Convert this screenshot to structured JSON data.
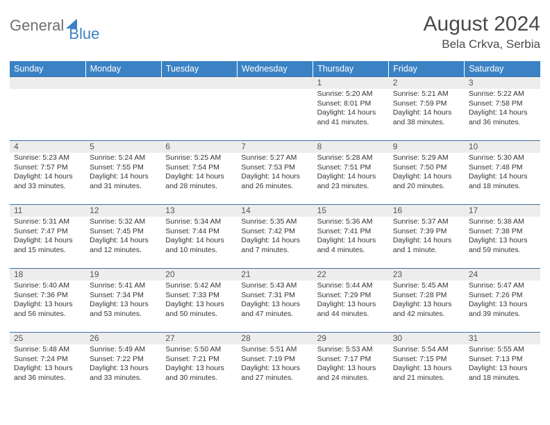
{
  "header": {
    "logo_part1": "General",
    "logo_part2": "Blue",
    "month_title": "August 2024",
    "location": "Bela Crkva, Serbia"
  },
  "style": {
    "accent_color": "#3b82c4",
    "header_text_color": "#ffffff",
    "daynum_bg": "#ededed",
    "body_font_size": 10.5,
    "title_font_size": 30
  },
  "weekdays": [
    "Sunday",
    "Monday",
    "Tuesday",
    "Wednesday",
    "Thursday",
    "Friday",
    "Saturday"
  ],
  "weeks": [
    [
      null,
      null,
      null,
      null,
      {
        "n": "1",
        "sr": "5:20 AM",
        "ss": "8:01 PM",
        "dl": "14 hours and 41 minutes."
      },
      {
        "n": "2",
        "sr": "5:21 AM",
        "ss": "7:59 PM",
        "dl": "14 hours and 38 minutes."
      },
      {
        "n": "3",
        "sr": "5:22 AM",
        "ss": "7:58 PM",
        "dl": "14 hours and 36 minutes."
      }
    ],
    [
      {
        "n": "4",
        "sr": "5:23 AM",
        "ss": "7:57 PM",
        "dl": "14 hours and 33 minutes."
      },
      {
        "n": "5",
        "sr": "5:24 AM",
        "ss": "7:55 PM",
        "dl": "14 hours and 31 minutes."
      },
      {
        "n": "6",
        "sr": "5:25 AM",
        "ss": "7:54 PM",
        "dl": "14 hours and 28 minutes."
      },
      {
        "n": "7",
        "sr": "5:27 AM",
        "ss": "7:53 PM",
        "dl": "14 hours and 26 minutes."
      },
      {
        "n": "8",
        "sr": "5:28 AM",
        "ss": "7:51 PM",
        "dl": "14 hours and 23 minutes."
      },
      {
        "n": "9",
        "sr": "5:29 AM",
        "ss": "7:50 PM",
        "dl": "14 hours and 20 minutes."
      },
      {
        "n": "10",
        "sr": "5:30 AM",
        "ss": "7:48 PM",
        "dl": "14 hours and 18 minutes."
      }
    ],
    [
      {
        "n": "11",
        "sr": "5:31 AM",
        "ss": "7:47 PM",
        "dl": "14 hours and 15 minutes."
      },
      {
        "n": "12",
        "sr": "5:32 AM",
        "ss": "7:45 PM",
        "dl": "14 hours and 12 minutes."
      },
      {
        "n": "13",
        "sr": "5:34 AM",
        "ss": "7:44 PM",
        "dl": "14 hours and 10 minutes."
      },
      {
        "n": "14",
        "sr": "5:35 AM",
        "ss": "7:42 PM",
        "dl": "14 hours and 7 minutes."
      },
      {
        "n": "15",
        "sr": "5:36 AM",
        "ss": "7:41 PM",
        "dl": "14 hours and 4 minutes."
      },
      {
        "n": "16",
        "sr": "5:37 AM",
        "ss": "7:39 PM",
        "dl": "14 hours and 1 minute."
      },
      {
        "n": "17",
        "sr": "5:38 AM",
        "ss": "7:38 PM",
        "dl": "13 hours and 59 minutes."
      }
    ],
    [
      {
        "n": "18",
        "sr": "5:40 AM",
        "ss": "7:36 PM",
        "dl": "13 hours and 56 minutes."
      },
      {
        "n": "19",
        "sr": "5:41 AM",
        "ss": "7:34 PM",
        "dl": "13 hours and 53 minutes."
      },
      {
        "n": "20",
        "sr": "5:42 AM",
        "ss": "7:33 PM",
        "dl": "13 hours and 50 minutes."
      },
      {
        "n": "21",
        "sr": "5:43 AM",
        "ss": "7:31 PM",
        "dl": "13 hours and 47 minutes."
      },
      {
        "n": "22",
        "sr": "5:44 AM",
        "ss": "7:29 PM",
        "dl": "13 hours and 44 minutes."
      },
      {
        "n": "23",
        "sr": "5:45 AM",
        "ss": "7:28 PM",
        "dl": "13 hours and 42 minutes."
      },
      {
        "n": "24",
        "sr": "5:47 AM",
        "ss": "7:26 PM",
        "dl": "13 hours and 39 minutes."
      }
    ],
    [
      {
        "n": "25",
        "sr": "5:48 AM",
        "ss": "7:24 PM",
        "dl": "13 hours and 36 minutes."
      },
      {
        "n": "26",
        "sr": "5:49 AM",
        "ss": "7:22 PM",
        "dl": "13 hours and 33 minutes."
      },
      {
        "n": "27",
        "sr": "5:50 AM",
        "ss": "7:21 PM",
        "dl": "13 hours and 30 minutes."
      },
      {
        "n": "28",
        "sr": "5:51 AM",
        "ss": "7:19 PM",
        "dl": "13 hours and 27 minutes."
      },
      {
        "n": "29",
        "sr": "5:53 AM",
        "ss": "7:17 PM",
        "dl": "13 hours and 24 minutes."
      },
      {
        "n": "30",
        "sr": "5:54 AM",
        "ss": "7:15 PM",
        "dl": "13 hours and 21 minutes."
      },
      {
        "n": "31",
        "sr": "5:55 AM",
        "ss": "7:13 PM",
        "dl": "13 hours and 18 minutes."
      }
    ]
  ],
  "labels": {
    "sunrise": "Sunrise:",
    "sunset": "Sunset:",
    "daylight": "Daylight:"
  }
}
